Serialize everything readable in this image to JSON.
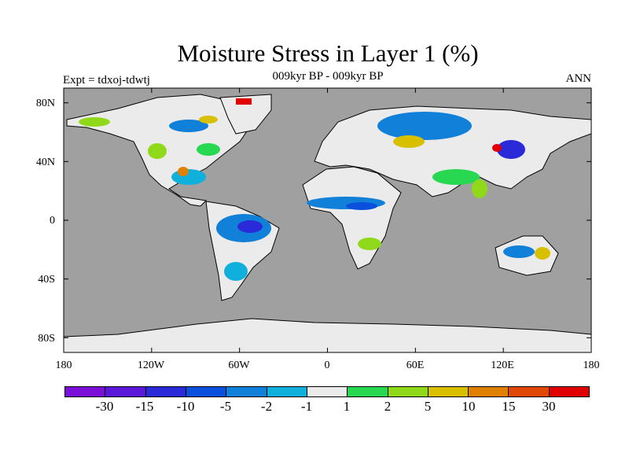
{
  "title": "Moisture Stress in Layer 1 (%)",
  "subtitle": "009kyr BP - 009kyr BP",
  "experiment_label": "Expt = tdxoj-tdwtj",
  "season_label": "ANN",
  "colors": {
    "ocean": "#a0a0a0",
    "land_neutral": "#ebebeb",
    "coast": "#000000",
    "palette": [
      "#7a10d8",
      "#5a18d8",
      "#2a2ad8",
      "#0a50dc",
      "#1080d8",
      "#10b0dc",
      "#ebebeb",
      "#28d850",
      "#90d81a",
      "#d8c000",
      "#e08000",
      "#e04808",
      "#e00000"
    ]
  },
  "map": {
    "projection": "cylindrical-equidistant",
    "lon_range": [
      -180,
      180
    ],
    "lat_range": [
      -90,
      90
    ],
    "x_ticks": [
      "180",
      "120W",
      "60W",
      "0",
      "60E",
      "120E",
      "180"
    ],
    "y_ticks": [
      "80N",
      "40N",
      "0",
      "40S",
      "80S"
    ]
  },
  "colorbar": {
    "labels": [
      "-30",
      "-15",
      "-10",
      "-5",
      "-2",
      "-1",
      "1",
      "2",
      "5",
      "10",
      "15",
      "30"
    ]
  }
}
